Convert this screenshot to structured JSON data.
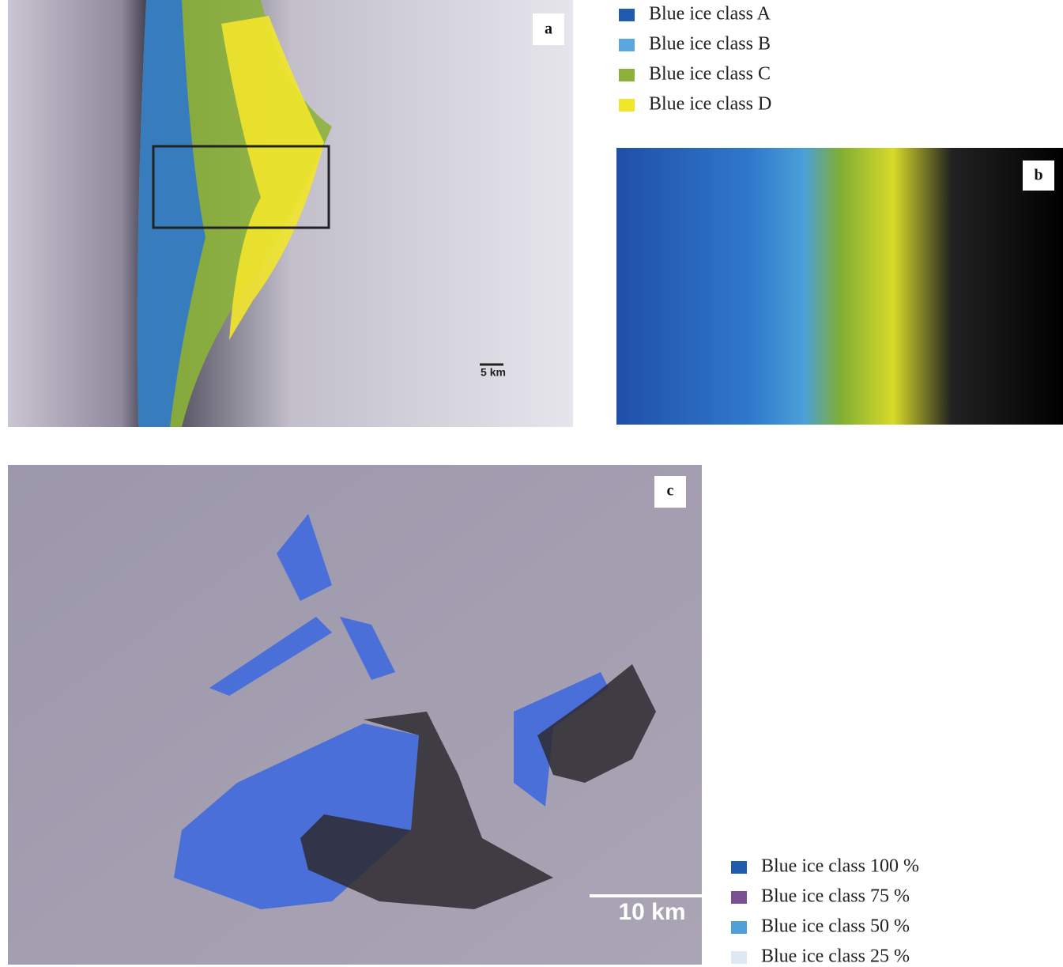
{
  "panels": [
    {
      "label": "a",
      "scale_bar": "5 km"
    },
    {
      "label": "b"
    },
    {
      "label": "c",
      "scale_bar": "10 km"
    }
  ],
  "legend_top": {
    "items": [
      {
        "label": "Blue ice class A",
        "color": "#1f5cb0"
      },
      {
        "label": "Blue ice class B",
        "color": "#5aa6e0"
      },
      {
        "label": "Blue ice class C",
        "color": "#8cb23a"
      },
      {
        "label": "Blue ice class D",
        "color": "#f2e62a"
      }
    ]
  },
  "legend_bottom": {
    "items": [
      {
        "label": "Blue ice class 100 %",
        "color": "#1f5cb0"
      },
      {
        "label": "Blue ice class 75 %",
        "color": "#7a4f93"
      },
      {
        "label": "Blue ice class 50 %",
        "color": "#4f9fd8"
      },
      {
        "label": "Blue ice class 25 %",
        "color": "#dde8f4"
      }
    ]
  }
}
